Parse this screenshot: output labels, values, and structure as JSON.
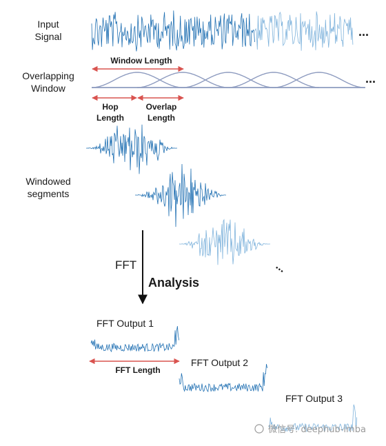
{
  "labels": {
    "input_signal_1": "Input",
    "input_signal_2": "Signal",
    "overlapping_window_1": "Overlapping",
    "overlapping_window_2": "Window",
    "window_length": "Window Length",
    "hop_length_1": "Hop",
    "hop_length_2": "Length",
    "overlap_length_1": "Overlap",
    "overlap_length_2": "Length",
    "windowed_segments_1": "Windowed",
    "windowed_segments_2": "segments",
    "fft": "FFT",
    "analysis": "Analysis",
    "fft_output_1": "FFT Output 1",
    "fft_output_2": "FFT Output 2",
    "fft_output_3": "FFT Output 3",
    "fft_length": "FFT Length",
    "ellipsis": "...",
    "watermark": "微信号: deephub-imba"
  },
  "colors": {
    "signal_dark": "#1f6fb2",
    "signal_light": "#7fb3dc",
    "window_curve": "#8d9bbf",
    "arrow_red": "#d9534f",
    "text": "#1a1a1a"
  }
}
